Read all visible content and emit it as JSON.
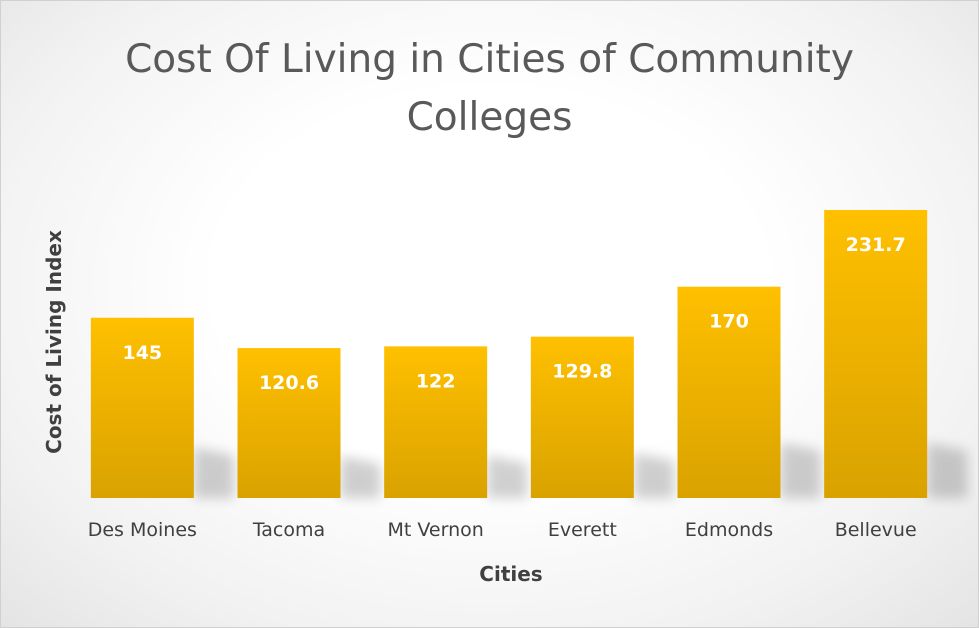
{
  "chart_data": {
    "type": "bar",
    "title": "Cost Of Living in Cities of Community Colleges",
    "xlabel": "Cities",
    "ylabel": "Cost of Living Index",
    "categories": [
      "Des Moines",
      "Tacoma",
      "Mt Vernon",
      "Everett",
      "Edmonds",
      "Bellevue"
    ],
    "values": [
      145,
      120.6,
      122,
      129.8,
      170,
      231.7
    ],
    "value_labels": [
      "145",
      "120.6",
      "122",
      "129.8",
      "170",
      "231.7"
    ],
    "ylim": [
      0,
      231.7
    ],
    "grid": false,
    "legend": "none",
    "bar_color_top": "#FFC000",
    "bar_color_bottom": "#D9A200",
    "data_label_color": "#FFFFFF",
    "text_color": "#595959"
  }
}
